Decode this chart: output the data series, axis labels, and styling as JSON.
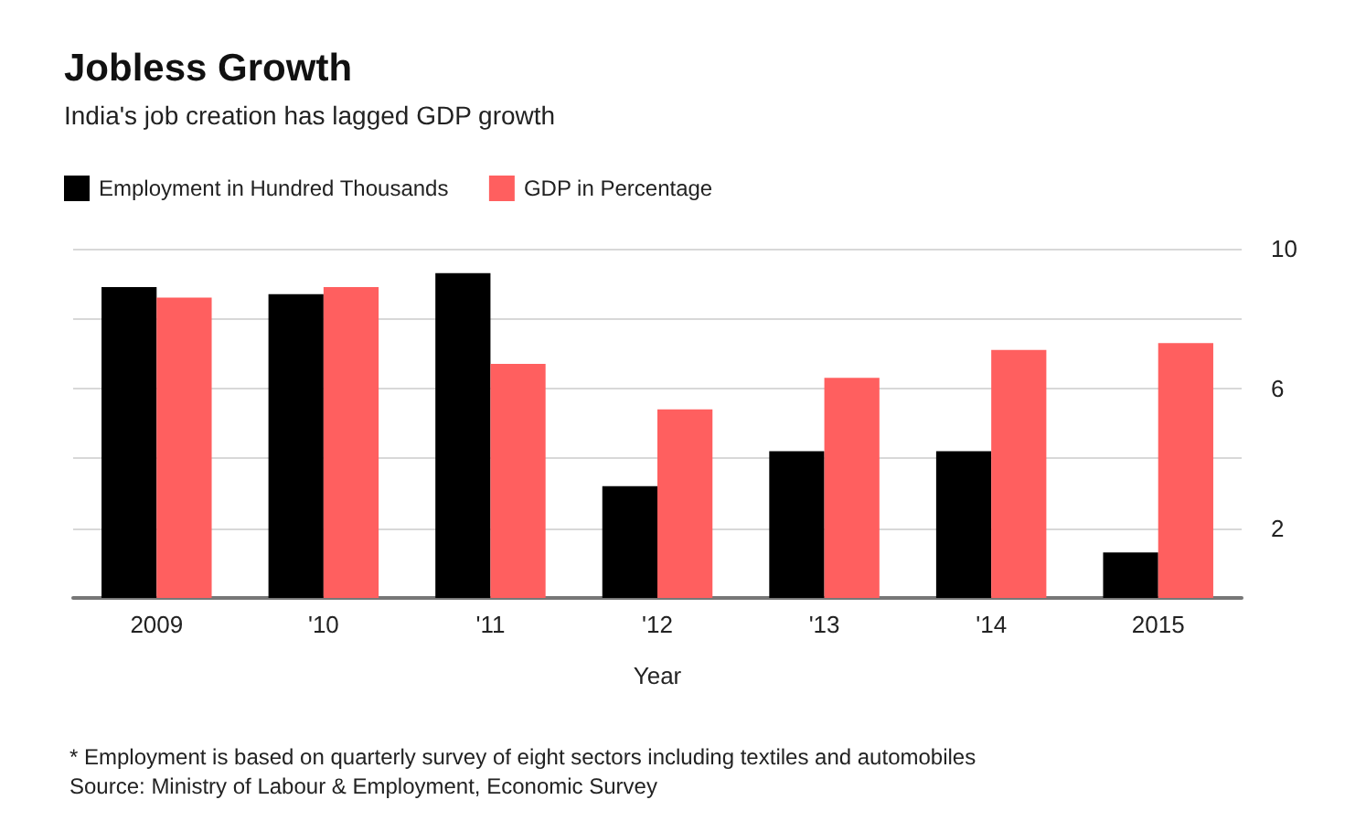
{
  "chart_data": {
    "type": "bar",
    "title": "Jobless Growth",
    "subtitle": "India's job creation has lagged GDP growth",
    "xlabel": "Year",
    "categories": [
      "2009",
      "'10",
      "'11",
      "'12",
      "'13",
      "'14",
      "2015"
    ],
    "series": [
      {
        "name": "Employment in Hundred Thousands",
        "color": "#000000",
        "values": [
          8.9,
          8.7,
          9.3,
          3.2,
          4.2,
          4.2,
          1.3
        ]
      },
      {
        "name": "GDP in Percentage",
        "color": "#ff5f5f",
        "values": [
          8.6,
          8.9,
          6.7,
          5.4,
          6.3,
          7.1,
          7.3
        ]
      }
    ],
    "ylim": [
      0,
      10
    ],
    "yticks": [
      {
        "value": 0,
        "label": null
      },
      2,
      {
        "value": 4,
        "label": null
      },
      6,
      {
        "value": 8,
        "label": null
      },
      10
    ],
    "grid": "y",
    "legend": "top left",
    "annotations": [
      "* Employment is based on quarterly survey of eight sectors including textiles and automobiles",
      "Source: Ministry of Labour & Employment, Economic Survey"
    ]
  }
}
